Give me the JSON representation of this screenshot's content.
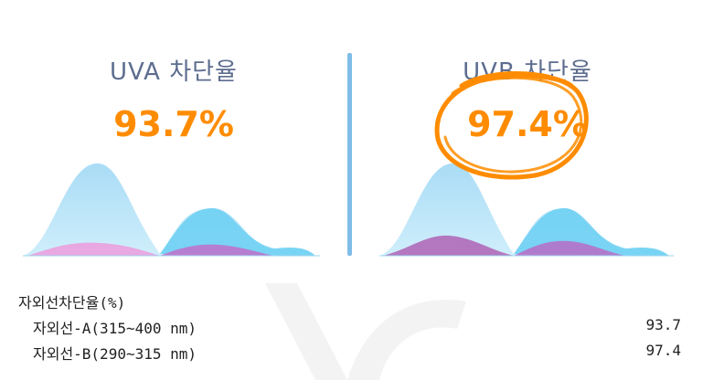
{
  "uva": {
    "title": "UVA 차단율",
    "value": "93.7%"
  },
  "uvb": {
    "title": "UVB 차단율",
    "value": "97.4%"
  },
  "colors": {
    "accent": "#ff8c00",
    "title": "#5d6d8f",
    "divider": "#7fbde8"
  },
  "table": {
    "heading": "자외선차단율(%)",
    "rows": [
      {
        "label": "자외선-A(315~400 nm)",
        "value": "93.7"
      },
      {
        "label": "자외선-B(290~315 nm)",
        "value": "97.4"
      }
    ]
  }
}
